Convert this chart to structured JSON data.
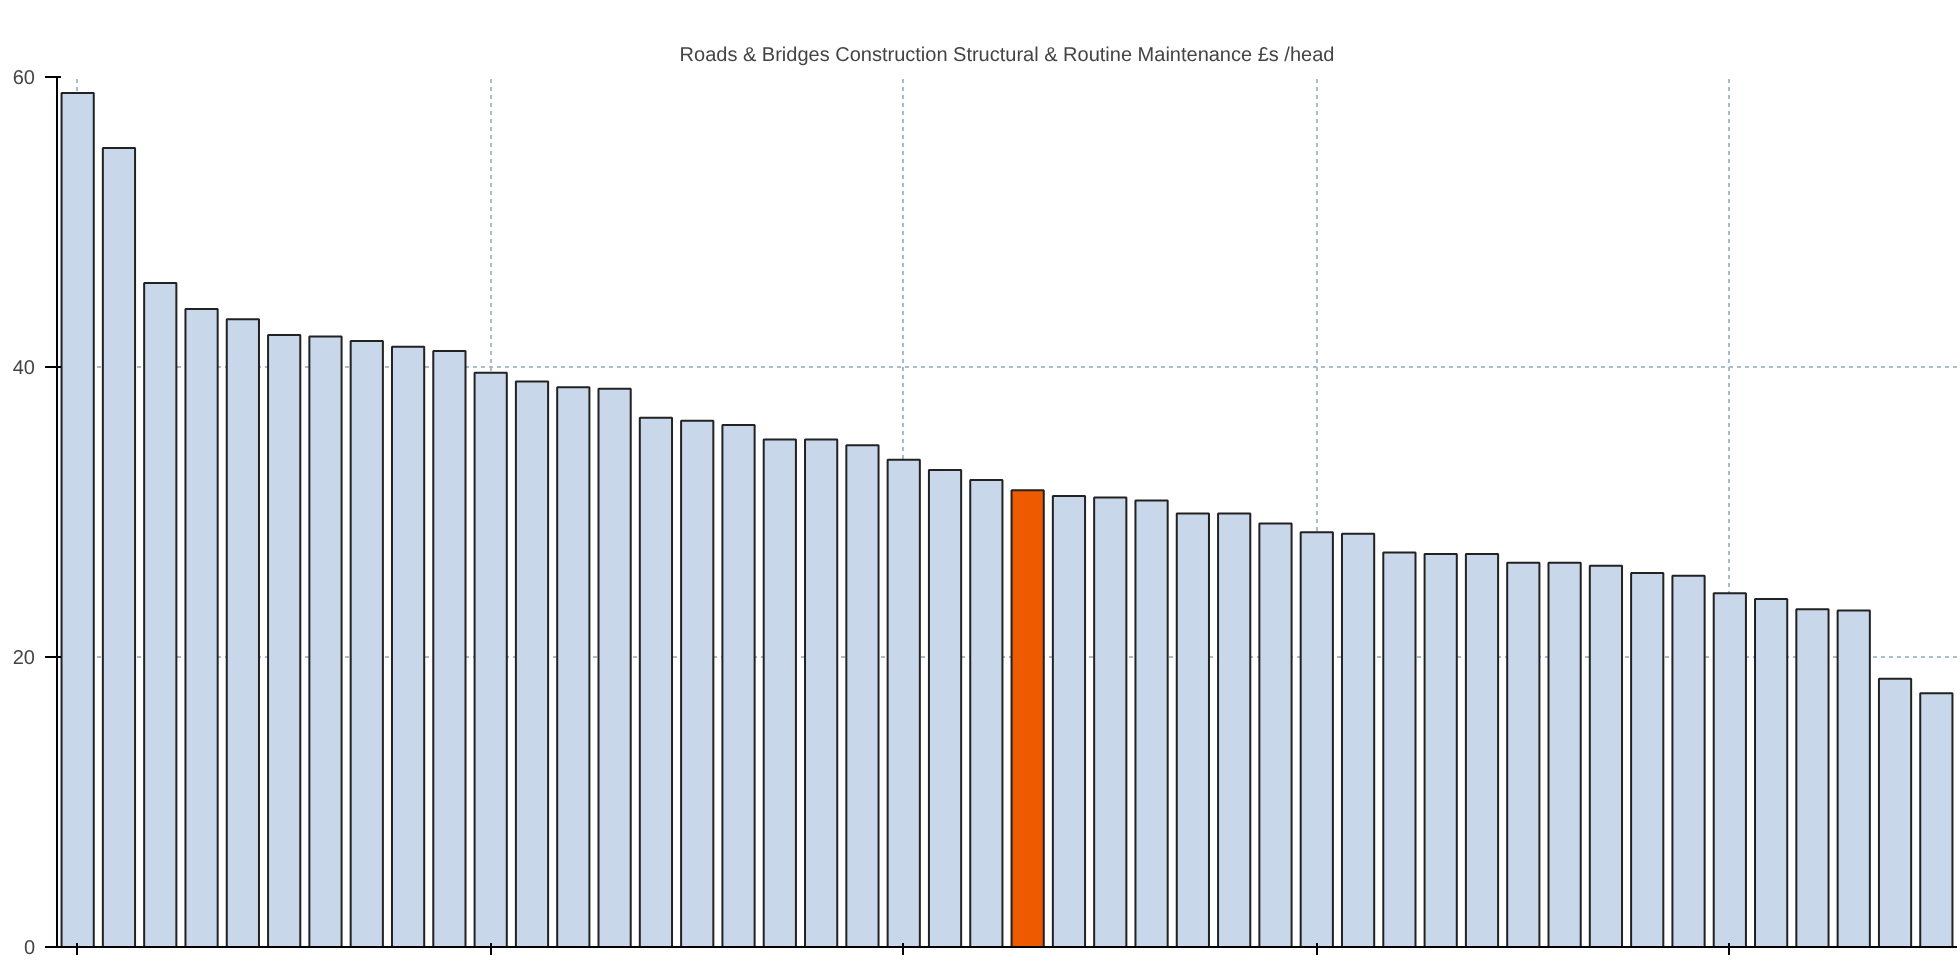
{
  "chart_data": {
    "type": "bar",
    "title": "Roads & Bridges Construction Structural & Routine Maintenance £s /head",
    "categories": [
      null,
      null,
      null,
      null,
      null,
      null,
      null,
      null,
      null,
      null,
      null,
      null,
      null,
      null,
      null,
      null,
      null,
      null,
      null,
      null,
      null,
      null,
      null,
      null,
      null,
      null,
      null,
      null,
      null,
      null,
      null,
      null,
      null,
      null,
      null,
      null,
      null,
      null,
      null,
      null,
      null,
      null,
      null,
      null,
      null,
      null
    ],
    "values": [
      58.9,
      55.1,
      45.8,
      44.0,
      43.3,
      42.2,
      42.1,
      41.8,
      41.4,
      41.1,
      39.6,
      39.0,
      38.6,
      38.5,
      36.5,
      36.3,
      36.0,
      35.0,
      35.0,
      34.6,
      33.6,
      32.9,
      32.2,
      31.5,
      31.1,
      31.0,
      30.8,
      29.9,
      29.9,
      29.2,
      28.6,
      28.5,
      27.2,
      27.1,
      27.1,
      26.5,
      26.5,
      26.3,
      25.8,
      25.6,
      24.4,
      24.0,
      23.3,
      23.2,
      18.5,
      17.5
    ],
    "colors": [
      "#c9d7ea",
      "#c9d7ea",
      "#c9d7ea",
      "#c9d7ea",
      "#c9d7ea",
      "#c9d7ea",
      "#c9d7ea",
      "#c9d7ea",
      "#c9d7ea",
      "#c9d7ea",
      "#c9d7ea",
      "#c9d7ea",
      "#c9d7ea",
      "#c9d7ea",
      "#c9d7ea",
      "#c9d7ea",
      "#c9d7ea",
      "#c9d7ea",
      "#c9d7ea",
      "#c9d7ea",
      "#c9d7ea",
      "#c9d7ea",
      "#c9d7ea",
      "#ee5a00",
      "#c9d7ea",
      "#c9d7ea",
      "#c9d7ea",
      "#c9d7ea",
      "#c9d7ea",
      "#c9d7ea",
      "#c9d7ea",
      "#c9d7ea",
      "#c9d7ea",
      "#c9d7ea",
      "#c9d7ea",
      "#c9d7ea",
      "#c9d7ea",
      "#c9d7ea",
      "#c9d7ea",
      "#c9d7ea",
      "#c9d7ea",
      "#c9d7ea",
      "#c9d7ea",
      "#c9d7ea",
      "#c9d7ea",
      "#c9d7ea"
    ],
    "ylim": [
      0,
      60
    ],
    "yticks": [
      0,
      20,
      40,
      60
    ],
    "grid": true
  }
}
